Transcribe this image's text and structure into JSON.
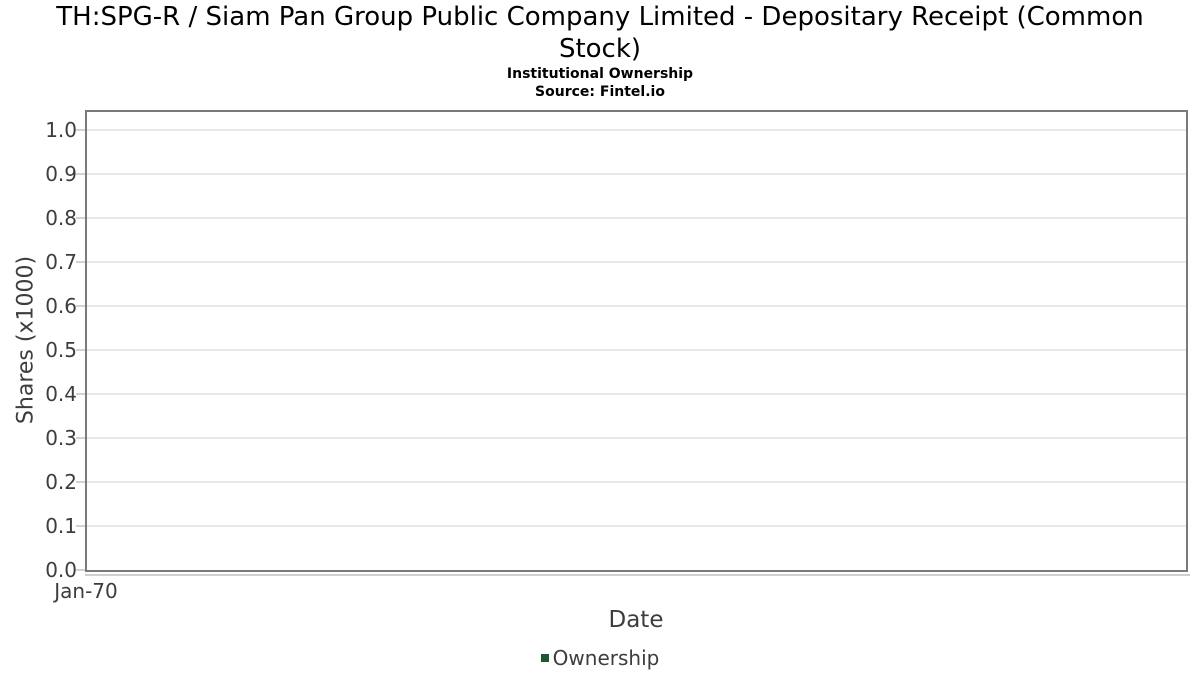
{
  "header": {
    "title_line1": "TH:SPG-R / Siam Pan Group Public Company Limited - Depositary Receipt (Common",
    "title_line2": "Stock)",
    "subtitle": "Institutional Ownership",
    "source": "Source: Fintel.io"
  },
  "chart_data": {
    "type": "line",
    "title": "TH:SPG-R / Siam Pan Group Public Company Limited - Depositary Receipt (Common Stock)",
    "subtitle": "Institutional Ownership",
    "source": "Source: Fintel.io",
    "xlabel": "Date",
    "ylabel": "Shares (x1000)",
    "series": [
      {
        "name": "Ownership",
        "color": "#1e5631",
        "x": [],
        "values": []
      }
    ],
    "x_ticks": [
      "Jan-70"
    ],
    "y_ticks": [
      "0.0",
      "0.1",
      "0.2",
      "0.3",
      "0.4",
      "0.5",
      "0.6",
      "0.7",
      "0.8",
      "0.9",
      "1.0"
    ],
    "ylim": [
      0.0,
      1.0
    ],
    "grid": true,
    "legend_position": "bottom"
  }
}
